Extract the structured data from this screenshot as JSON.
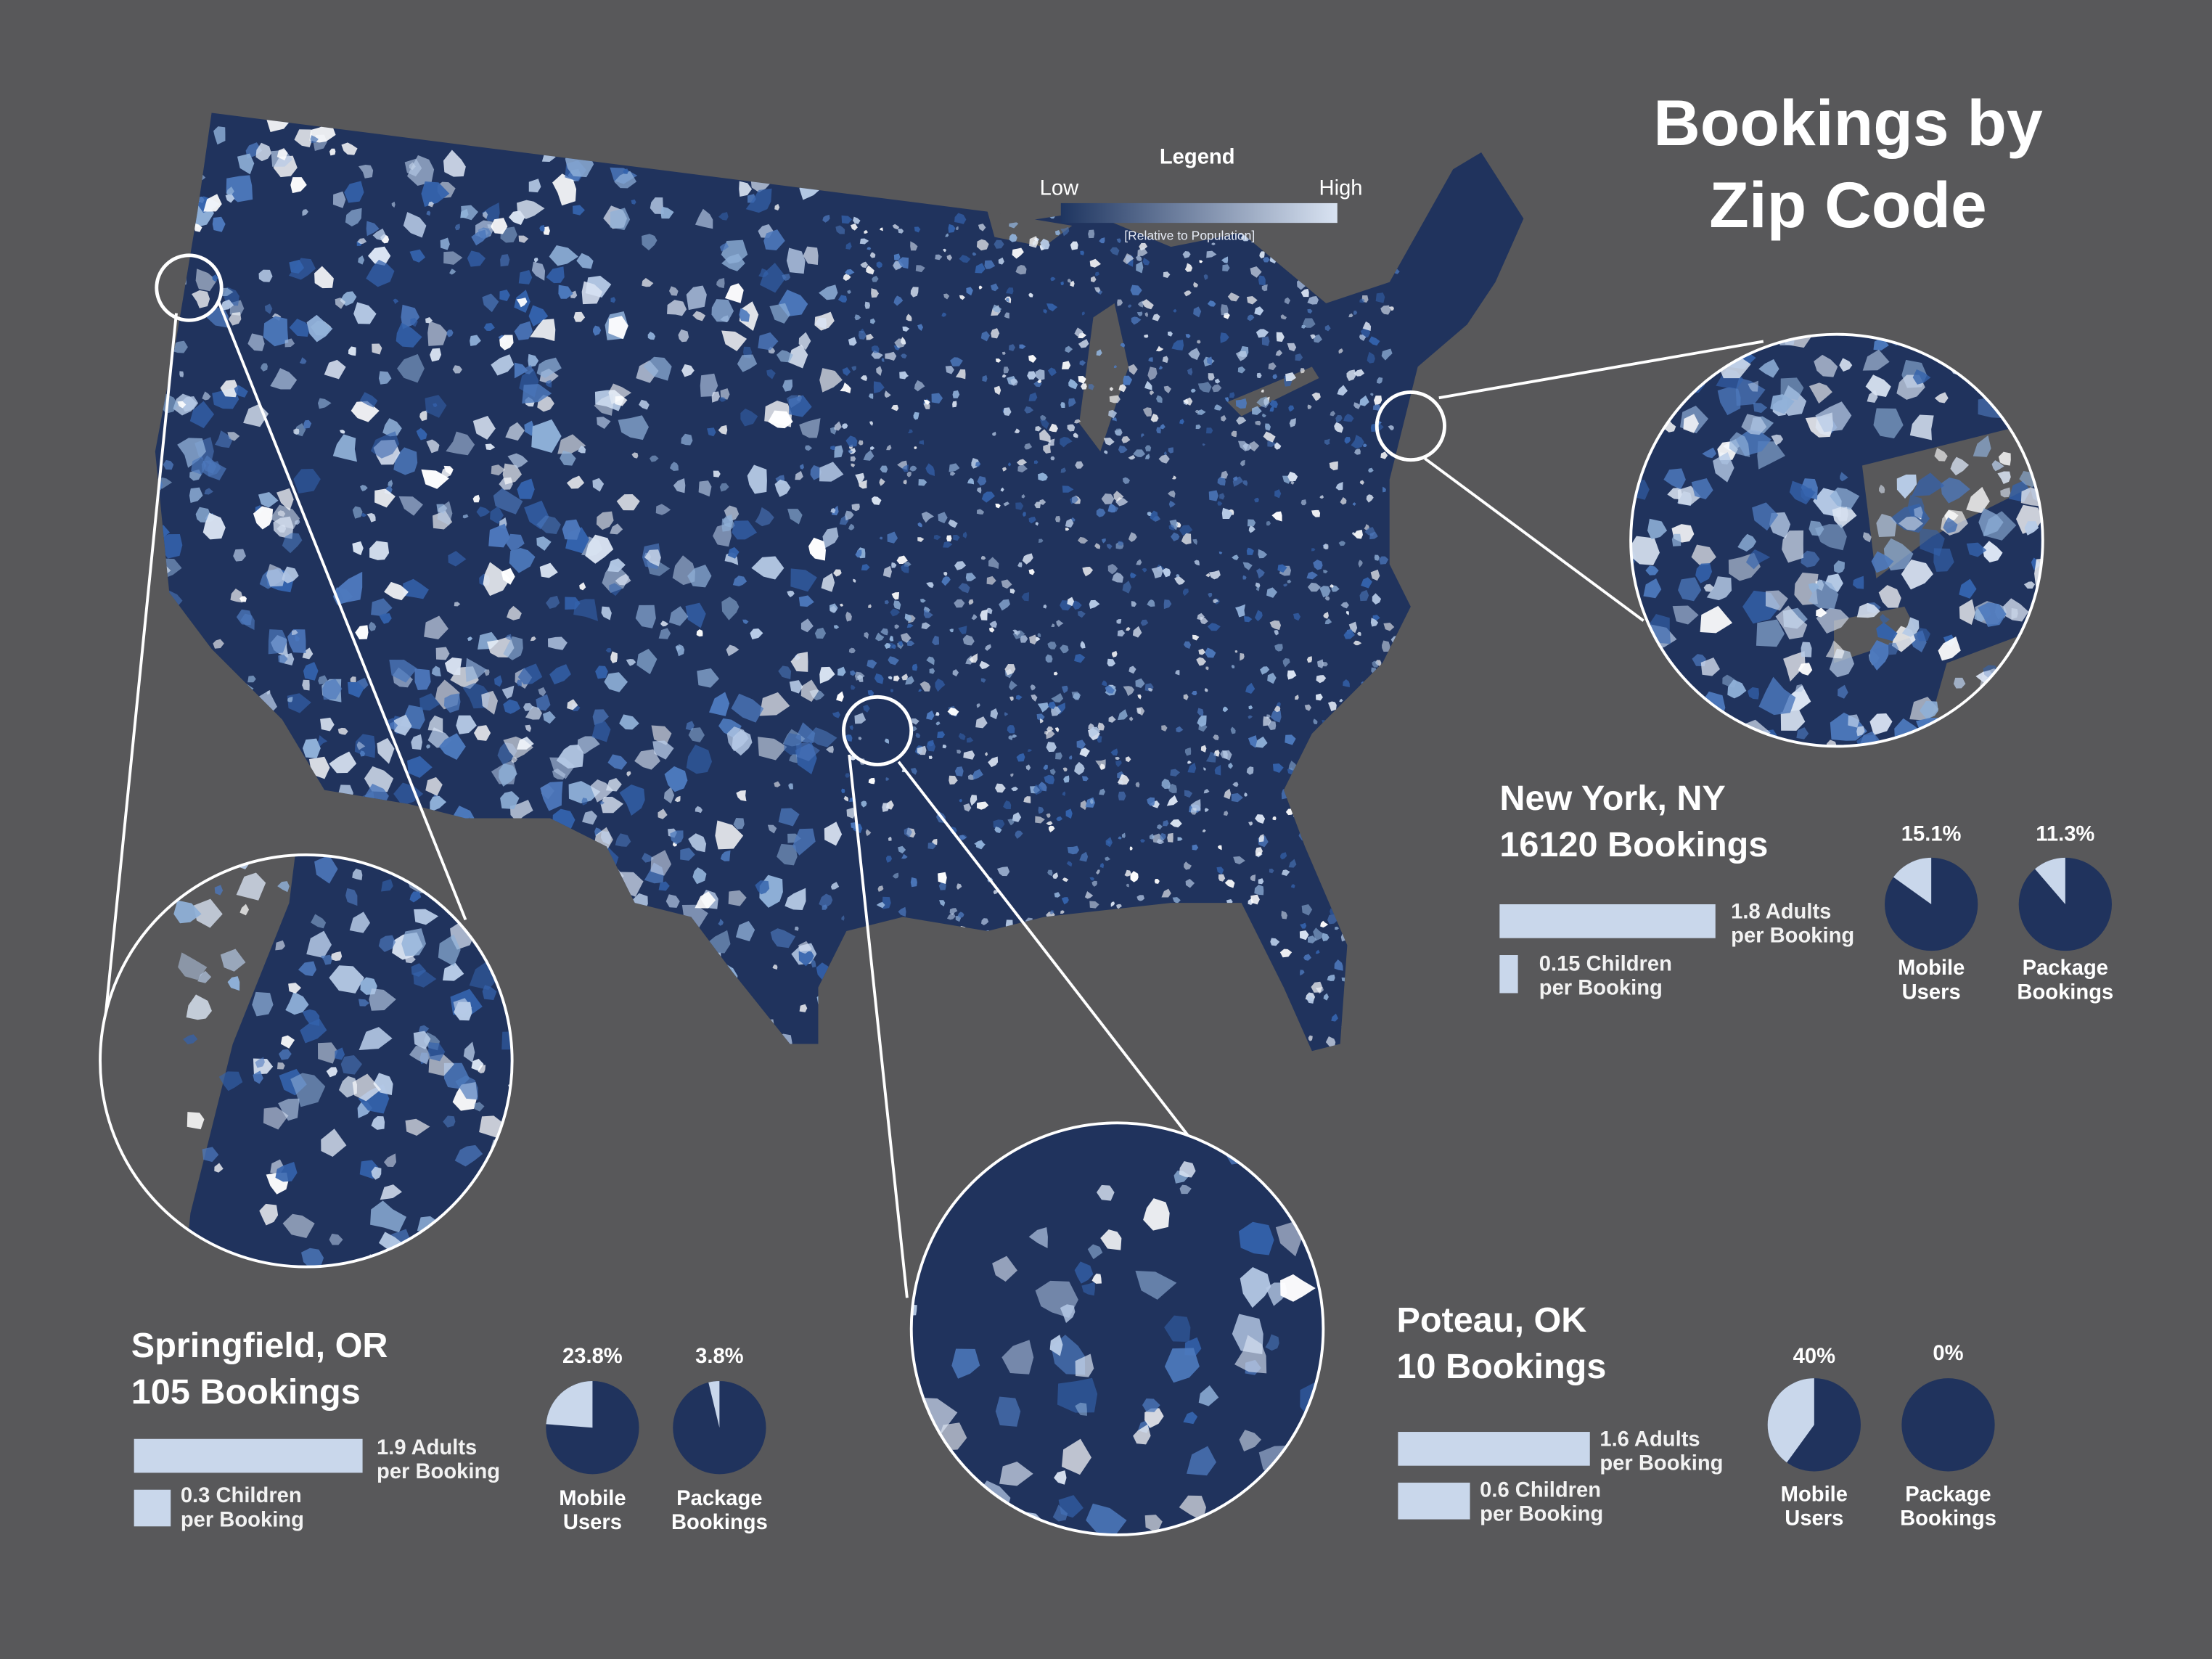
{
  "title": {
    "line1": "Bookings by",
    "line2": "Zip Code"
  },
  "legend": {
    "title": "Legend",
    "low_label": "Low",
    "high_label": "High",
    "note": "[Relative to Population]",
    "gradient_low_color": "#1e3560",
    "gradient_high_color": "#d9e3f2"
  },
  "colors": {
    "background": "#58585a",
    "map_base": "#20335d",
    "bar_fill": "#c9d7eb",
    "pie_dark": "#20335d",
    "pie_light": "#c9d7eb"
  },
  "cities": {
    "new_york": {
      "name": "New York, NY",
      "bookings_text": "16120 Bookings",
      "adults_line1": "1.8 Adults",
      "adults_line2": "per Booking",
      "adults_value": 1.8,
      "children_line1": "0.15 Children",
      "children_line2": "per Booking",
      "children_value": 0.15,
      "mobile_pct_text": "15.1%",
      "mobile_value": 15.1,
      "mobile_label1": "Mobile",
      "mobile_label2": "Users",
      "package_pct_text": "11.3%",
      "package_value": 11.3,
      "package_label1": "Package",
      "package_label2": "Bookings"
    },
    "springfield": {
      "name": "Springfield, OR",
      "bookings_text": "105 Bookings",
      "adults_line1": "1.9 Adults",
      "adults_line2": "per Booking",
      "adults_value": 1.9,
      "children_line1": "0.3 Children",
      "children_line2": "per Booking",
      "children_value": 0.3,
      "mobile_pct_text": "23.8%",
      "mobile_value": 23.8,
      "mobile_label1": "Mobile",
      "mobile_label2": "Users",
      "package_pct_text": "3.8%",
      "package_value": 3.8,
      "package_label1": "Package",
      "package_label2": "Bookings"
    },
    "poteau": {
      "name": "Poteau, OK",
      "bookings_text": "10 Bookings",
      "adults_line1": "1.6 Adults",
      "adults_line2": "per Booking",
      "adults_value": 1.6,
      "children_line1": "0.6 Children",
      "children_line2": "per Booking",
      "children_value": 0.6,
      "mobile_pct_text": "40%",
      "mobile_value": 40,
      "mobile_label1": "Mobile",
      "mobile_label2": "Users",
      "package_pct_text": "0%",
      "package_value": 0,
      "package_label1": "Package",
      "package_label2": "Bookings"
    }
  }
}
